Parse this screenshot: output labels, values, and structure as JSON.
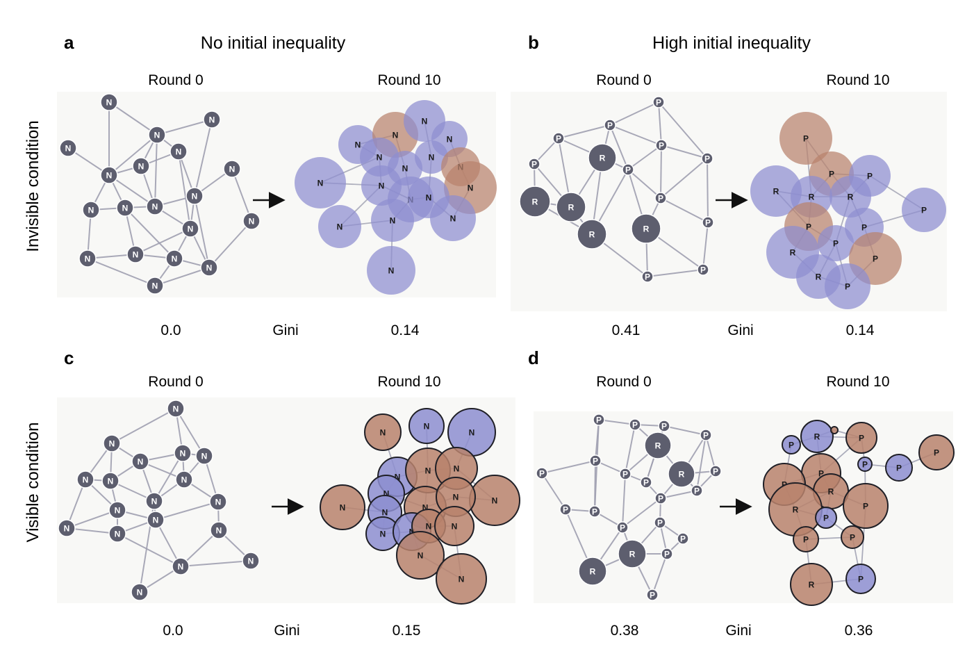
{
  "figure": {
    "panels": [
      {
        "label": "a",
        "title": "No initial inequality",
        "condition": "Invisible condition",
        "round0_label": "Round 0",
        "round10_label": "Round 10",
        "gini_label": "Gini",
        "gini_round0": "0.0",
        "gini_round10": "0.14"
      },
      {
        "label": "b",
        "title": "High initial inequality",
        "condition": "Invisible condition",
        "round0_label": "Round 0",
        "round10_label": "Round 10",
        "gini_label": "Gini",
        "gini_round0": "0.41",
        "gini_round10": "0.14"
      },
      {
        "label": "c",
        "title": "",
        "condition": "Visible condition",
        "round0_label": "Round 0",
        "round10_label": "Round 10",
        "gini_label": "Gini",
        "gini_round0": "0.0",
        "gini_round10": "0.15"
      },
      {
        "label": "d",
        "title": "",
        "condition": "Visible condition",
        "round0_label": "Round 0",
        "round10_label": "Round 10",
        "gini_label": "Gini",
        "gini_round0": "0.38",
        "gini_round10": "0.36"
      }
    ],
    "row_labels": [
      "Invisible condition",
      "Visible condition"
    ],
    "node_types": {
      "N": "N",
      "R": "R",
      "P": "P"
    },
    "colors": {
      "node_dark": "#5d5e6e",
      "node_blue": "#8d8ed0",
      "node_brown": "#b9826c",
      "edge": "#9e9fb0",
      "panel_bg": "#f8f8f6"
    }
  }
}
